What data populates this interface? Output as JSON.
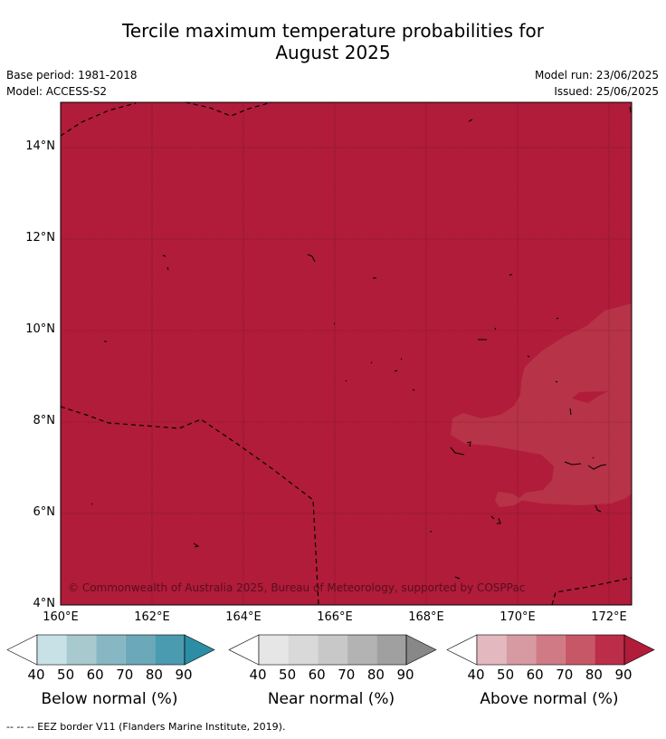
{
  "title_line1": "Tercile maximum temperature probabilities for",
  "title_line2": "August 2025",
  "meta_left": {
    "base_period": "Base period: 1981-2018",
    "model": "Model: ACCESS-S2"
  },
  "meta_right": {
    "model_run": "Model run: 23/06/2025",
    "issued": "Issued: 25/06/2025"
  },
  "map": {
    "latitude_labels": [
      "14°N",
      "12°N",
      "10°N",
      "8°N",
      "6°N",
      "4°N"
    ],
    "longitude_labels": [
      "160°E",
      "162°E",
      "164°E",
      "166°E",
      "168°E",
      "170°E",
      "172°E"
    ],
    "copyright": "© Commonwealth of Australia 2025, Bureau of Meteorology, supported by COSPPac",
    "base_fill_color": "#b01c3a",
    "lighter_zone_color": "#b73347"
  },
  "colorbars": [
    {
      "name": "below",
      "label": "Below normal (%)",
      "ticks": [
        "40",
        "50",
        "60",
        "70",
        "80",
        "90"
      ],
      "colors": [
        "#ffffff",
        "#c8e1e7",
        "#a8c9ce",
        "#88b7c4",
        "#6ba9ba",
        "#4a9bb0",
        "#2b8ea5"
      ]
    },
    {
      "name": "near",
      "label": "Near normal (%)",
      "ticks": [
        "40",
        "50",
        "60",
        "70",
        "80",
        "90"
      ],
      "colors": [
        "#ffffff",
        "#e6e6e6",
        "#d9d9d9",
        "#c8c8c8",
        "#b3b3b3",
        "#a0a0a0",
        "#888888"
      ]
    },
    {
      "name": "above",
      "label": "Above normal (%)",
      "ticks": [
        "40",
        "50",
        "60",
        "70",
        "80",
        "90"
      ],
      "colors": [
        "#ffffff",
        "#e3b8bf",
        "#d79aa2",
        "#cf7a84",
        "#c75767",
        "#bb2d48",
        "#b01c3a"
      ]
    }
  ],
  "footer": "-- -- -- EEZ border V11 (Flanders Marine Institute, 2019)."
}
